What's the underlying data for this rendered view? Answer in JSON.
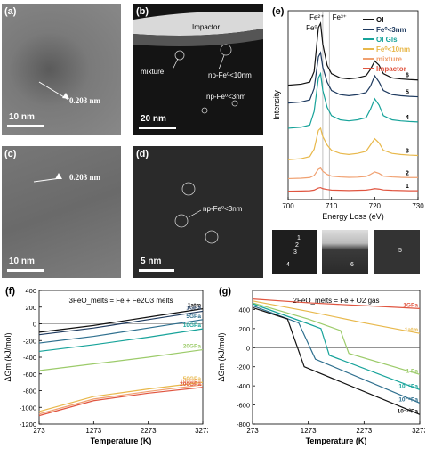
{
  "panels": {
    "a": {
      "label": "(a)",
      "scale": "10 nm",
      "annotation": "0.203 nm"
    },
    "b": {
      "label": "(b)",
      "scale": "20 nm",
      "impactor": "Impactor",
      "mixture": "mixture",
      "np_large": "np-Fe⁰<10nm",
      "np_small": "np-Fe⁰<3nm"
    },
    "c": {
      "label": "(c)",
      "scale": "10 nm",
      "annotation": "0.203 nm"
    },
    "d": {
      "label": "(d)",
      "scale": "5 nm",
      "np": "np-Fe⁰<3nm"
    },
    "e": {
      "label": "(e)",
      "inset_numbers": [
        "1",
        "2",
        "3",
        "4",
        "5",
        "6"
      ]
    },
    "f": {
      "label": "(f)"
    },
    "g": {
      "label": "(g)"
    }
  },
  "colors": {
    "OI": "#111111",
    "Fe3nm": "#1e3a5f",
    "OIGls": "#17a39a",
    "Fe10nm": "#e8b84b",
    "mixture": "#f0a070",
    "Impactor": "#e05540"
  },
  "chart_data": [
    {
      "type": "line",
      "id": "e",
      "xlabel": "Energy Loss (eV)",
      "ylabel": "Intensity",
      "xlim": [
        700,
        730
      ],
      "x_ticks": [
        "700",
        "710",
        "720",
        "730"
      ],
      "peak_labels": [
        "Fe²⁺",
        "Fe³⁺",
        "Fe⁰"
      ],
      "series": [
        {
          "name": "OI",
          "offset_label": "6",
          "color": "#111111",
          "x": [
            700,
            703,
            705,
            706,
            707,
            707.5,
            708,
            709,
            710,
            712,
            714,
            716,
            718,
            719,
            720,
            721,
            722,
            724,
            726,
            728,
            730
          ],
          "y": [
            5.45,
            5.5,
            5.6,
            6.1,
            8.2,
            8.4,
            7.4,
            6.4,
            6.0,
            5.8,
            5.75,
            5.8,
            5.9,
            6.2,
            6.6,
            6.4,
            6.0,
            5.8,
            5.75,
            5.72,
            5.7
          ]
        },
        {
          "name": "Fe⁰<3nm",
          "offset_label": "5",
          "color": "#1e3a5f",
          "x": [
            700,
            703,
            705,
            706,
            707,
            707.5,
            708,
            709,
            710,
            712,
            714,
            716,
            718,
            719,
            720,
            721,
            722,
            724,
            726,
            728,
            730
          ],
          "y": [
            4.6,
            4.65,
            4.75,
            5.3,
            6.8,
            7.0,
            6.3,
            5.6,
            5.2,
            5.0,
            4.95,
            5.0,
            5.1,
            5.4,
            5.9,
            5.6,
            5.2,
            5.0,
            4.95,
            4.92,
            4.9
          ]
        },
        {
          "name": "OI Gls",
          "offset_label": "4",
          "color": "#17a39a",
          "x": [
            700,
            703,
            705,
            706,
            707,
            707.5,
            708,
            709,
            710,
            712,
            714,
            716,
            718,
            719,
            720,
            721,
            722,
            724,
            726,
            728,
            730
          ],
          "y": [
            3.4,
            3.45,
            3.55,
            4.2,
            5.8,
            6.0,
            5.2,
            4.4,
            4.0,
            3.8,
            3.75,
            3.8,
            3.9,
            4.3,
            4.8,
            4.5,
            4.0,
            3.8,
            3.75,
            3.72,
            3.7
          ]
        },
        {
          "name": "Fe⁰<10nm",
          "offset_label": "3",
          "color": "#e8b84b",
          "x": [
            700,
            703,
            705,
            706,
            707,
            707.5,
            708,
            709,
            710,
            712,
            714,
            716,
            718,
            719,
            720,
            721,
            722,
            724,
            726,
            728,
            730
          ],
          "y": [
            1.9,
            1.95,
            2.05,
            2.4,
            3.3,
            3.4,
            3.0,
            2.6,
            2.35,
            2.2,
            2.15,
            2.2,
            2.3,
            2.6,
            2.9,
            2.7,
            2.35,
            2.2,
            2.15,
            2.12,
            2.1
          ]
        },
        {
          "name": "mixture",
          "offset_label": "2",
          "color": "#f0a070",
          "x": [
            700,
            703,
            705,
            706,
            707,
            707.5,
            708,
            709,
            710,
            712,
            714,
            716,
            718,
            719,
            720,
            721,
            722,
            724,
            726,
            728,
            730
          ],
          "y": [
            1.0,
            1.02,
            1.05,
            1.15,
            1.45,
            1.5,
            1.35,
            1.2,
            1.12,
            1.08,
            1.06,
            1.07,
            1.1,
            1.2,
            1.32,
            1.25,
            1.12,
            1.08,
            1.06,
            1.05,
            1.05
          ]
        },
        {
          "name": "Impactor",
          "offset_label": "1",
          "color": "#e05540",
          "x": [
            700,
            703,
            705,
            706,
            707,
            707.5,
            708,
            709,
            710,
            712,
            714,
            716,
            718,
            719,
            720,
            721,
            722,
            724,
            726,
            728,
            730
          ],
          "y": [
            0.4,
            0.41,
            0.42,
            0.45,
            0.55,
            0.57,
            0.52,
            0.48,
            0.45,
            0.44,
            0.43,
            0.44,
            0.45,
            0.48,
            0.52,
            0.5,
            0.46,
            0.44,
            0.43,
            0.42,
            0.42
          ]
        }
      ]
    },
    {
      "type": "line",
      "id": "f",
      "title": "3FeO_melts = Fe + Fe2O3 melts",
      "xlabel": "Temperature (K)",
      "ylabel": "ΔGm (kJ/mol)",
      "xlim": [
        273,
        3273
      ],
      "ylim": [
        -1200,
        400
      ],
      "x_ticks": [
        "273",
        "1273",
        "2273",
        "3273"
      ],
      "y_ticks": [
        "-1200",
        "-1000",
        "-800",
        "-600",
        "-400",
        "-200",
        "0",
        "200",
        "400"
      ],
      "series": [
        {
          "name": "1atm",
          "color": "#111111",
          "x": [
            273,
            1273,
            2273,
            3273
          ],
          "y": [
            -100,
            -20,
            80,
            180
          ]
        },
        {
          "name": "1GPa",
          "color": "#1e3a5f",
          "x": [
            273,
            1273,
            2273,
            3273
          ],
          "y": [
            -130,
            -50,
            50,
            150
          ]
        },
        {
          "name": "5GPa",
          "color": "#2e6f8e",
          "x": [
            273,
            1273,
            2273,
            3273
          ],
          "y": [
            -230,
            -150,
            -50,
            50
          ]
        },
        {
          "name": "10GPa",
          "color": "#17a39a",
          "x": [
            273,
            1273,
            2273,
            3273
          ],
          "y": [
            -330,
            -250,
            -160,
            -60
          ]
        },
        {
          "name": "20GPa",
          "color": "#9ccb6a",
          "x": [
            273,
            1273,
            2273,
            3273
          ],
          "y": [
            -560,
            -480,
            -400,
            -310
          ]
        },
        {
          "name": "50GPa",
          "color": "#e8b84b",
          "x": [
            273,
            1273,
            2273,
            3273
          ],
          "y": [
            -1050,
            -870,
            -780,
            -700
          ]
        },
        {
          "name": "100GPa",
          "color": "#f0a070",
          "x": [
            273,
            1273,
            2273,
            3273
          ],
          "y": [
            -1080,
            -900,
            -810,
            -730
          ]
        },
        {
          "name": "200GPa",
          "color": "#e05540",
          "x": [
            273,
            1273,
            2273,
            3273
          ],
          "y": [
            -1100,
            -920,
            -830,
            -760
          ]
        }
      ]
    },
    {
      "type": "line",
      "id": "g",
      "title": "2FeO_melts = Fe + O2 gas",
      "xlabel": "Temperature (K)",
      "ylabel": "ΔGm (kJ/mol)",
      "xlim": [
        273,
        3273
      ],
      "ylim": [
        -800,
        600
      ],
      "x_ticks": [
        "273",
        "1273",
        "2273",
        "3273"
      ],
      "y_ticks": [
        "-800",
        "-600",
        "-400",
        "-200",
        "0",
        "200",
        "400"
      ],
      "series": [
        {
          "name": "1GPa",
          "color": "#e05540",
          "x": [
            273,
            1273,
            2273,
            3273
          ],
          "y": [
            510,
            470,
            440,
            410
          ]
        },
        {
          "name": "1atm",
          "color": "#e8b84b",
          "x": [
            273,
            1273,
            2273,
            3273
          ],
          "y": [
            490,
            380,
            260,
            150
          ]
        },
        {
          "name": "1 Pa",
          "color": "#9ccb6a",
          "x": [
            273,
            1273,
            1850,
            2000,
            3273
          ],
          "y": [
            470,
            300,
            180,
            -60,
            -280
          ]
        },
        {
          "name": "10⁻⁵Pa",
          "color": "#17a39a",
          "x": [
            273,
            1273,
            1500,
            1650,
            3273
          ],
          "y": [
            460,
            250,
            200,
            -80,
            -440
          ]
        },
        {
          "name": "10⁻⁸Pa",
          "color": "#2e6f8e",
          "x": [
            273,
            1100,
            1400,
            3273
          ],
          "y": [
            440,
            260,
            -120,
            -580
          ]
        },
        {
          "name": "10⁻¹⁰Pa",
          "color": "#111111",
          "x": [
            273,
            900,
            1200,
            3273
          ],
          "y": [
            420,
            300,
            -200,
            -700
          ]
        }
      ]
    }
  ]
}
